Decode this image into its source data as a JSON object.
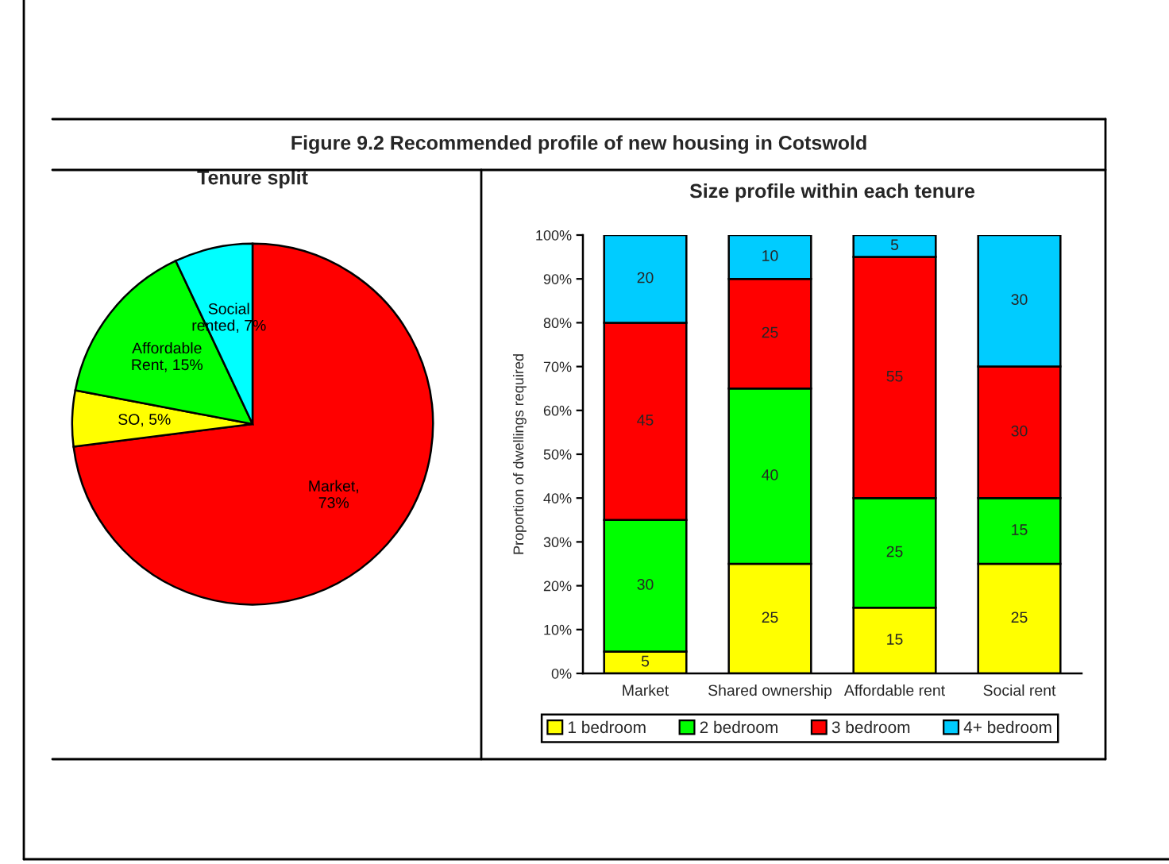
{
  "chart_data": [
    {
      "type": "other",
      "title": "Figure 9.2 Recommended profile of new housing in Cotswold"
    },
    {
      "type": "pie",
      "title": "Tenure split",
      "values": [
        73,
        5,
        15,
        7
      ],
      "colors": [
        "#ff0000",
        "#ffff00",
        "#00ff00",
        "#00ffff"
      ],
      "value_labels": [
        "Market, 73%",
        "SO, 5%",
        "Affordable Rent, 15%",
        "Social rented, 7%"
      ]
    },
    {
      "type": "bar",
      "title": "Size profile within each tenure",
      "categories": [
        "Market",
        "Shared ownership",
        "Affordable rent",
        "Social rent"
      ],
      "stacked": true,
      "series": [
        {
          "name": "1 bedroom",
          "color": "#ffff00",
          "values": [
            5,
            25,
            15,
            25
          ]
        },
        {
          "name": "2 bedroom",
          "color": "#00ff00",
          "values": [
            30,
            40,
            25,
            15
          ]
        },
        {
          "name": "3 bedroom",
          "color": "#ff0000",
          "values": [
            45,
            25,
            55,
            30
          ]
        },
        {
          "name": "4+ bedroom",
          "color": "#00ccff",
          "values": [
            20,
            10,
            5,
            30
          ]
        }
      ],
      "ylim": [
        0,
        100
      ],
      "yticks": [
        {
          "value": 0,
          "label": "0%"
        },
        {
          "value": 10,
          "label": "10%"
        },
        {
          "value": 20,
          "label": "20%"
        },
        {
          "value": 30,
          "label": "30%"
        },
        {
          "value": 40,
          "label": "40%"
        },
        {
          "value": 50,
          "label": "50%"
        },
        {
          "value": 60,
          "label": "60%"
        },
        {
          "value": 70,
          "label": "70%"
        },
        {
          "value": 80,
          "label": "80%"
        },
        {
          "value": 90,
          "label": "90%"
        },
        {
          "value": 100,
          "label": "100%"
        }
      ],
      "ylabel": "Proportion of dwellings required",
      "data_labels": true,
      "legend": "bottom"
    }
  ]
}
